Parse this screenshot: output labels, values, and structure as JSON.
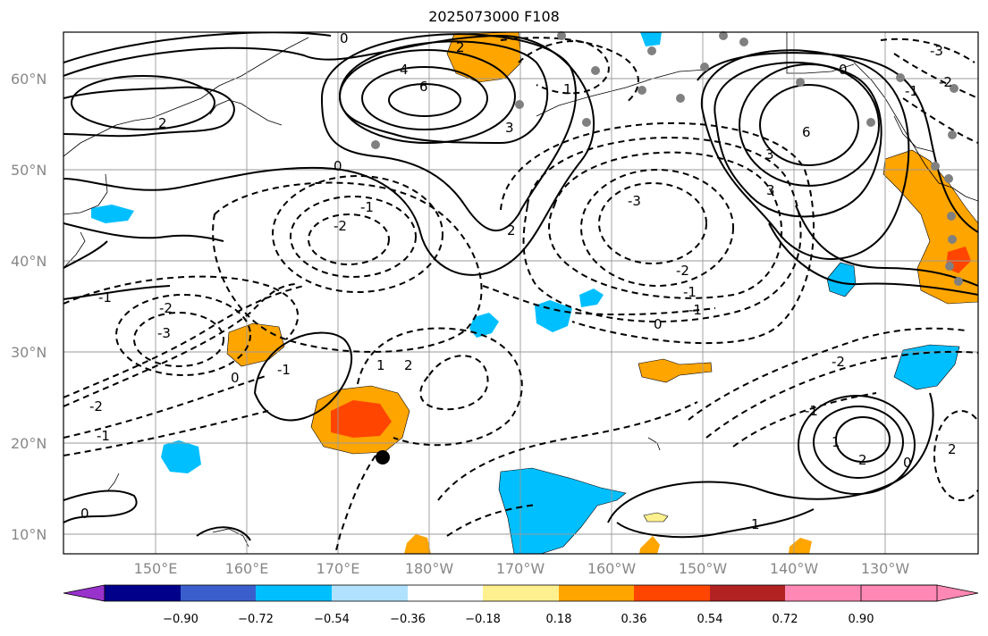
{
  "title": "2025073000 F108",
  "map": {
    "lat_labels": [
      "10°N",
      "20°N",
      "30°N",
      "40°N",
      "50°N",
      "60°N"
    ],
    "lon_labels": [
      "150°E",
      "160°E",
      "170°E",
      "180°W",
      "170°W",
      "160°W",
      "150°W",
      "140°W",
      "130°W"
    ],
    "contour_labels": [
      "0",
      "2",
      "4",
      "6",
      "3",
      "2",
      "1",
      "0",
      "-1",
      "-2",
      "-3",
      "2",
      "3",
      "-1",
      "-2",
      "0",
      "-1",
      "-2",
      "-3",
      "-1",
      "0",
      "1",
      "2",
      "3",
      "6",
      "0",
      "-1",
      "-2",
      "-3",
      "1",
      "2",
      "0",
      "-1",
      "-2",
      "1",
      "2",
      "-1",
      "0",
      "-2",
      "-1"
    ]
  },
  "colorbar": {
    "ticks": [
      "−0.90",
      "−0.72",
      "−0.54",
      "−0.36",
      "−0.18",
      "0.18",
      "0.36",
      "0.54",
      "0.72",
      "0.90"
    ],
    "colors": [
      "#9932cc",
      "#00008b",
      "#3a5fcd",
      "#00bfff",
      "#b0e2ff",
      "#ffffff",
      "#fff08f",
      "#ffa500",
      "#ff4500",
      "#b22222",
      "#ff88b4"
    ]
  },
  "colors": {
    "orange": "#ffa500",
    "red_orange": "#ff4500",
    "blue": "#00bfff",
    "light_yellow": "#fff08f",
    "grid": "#9a9a9a",
    "station": "#808080"
  }
}
